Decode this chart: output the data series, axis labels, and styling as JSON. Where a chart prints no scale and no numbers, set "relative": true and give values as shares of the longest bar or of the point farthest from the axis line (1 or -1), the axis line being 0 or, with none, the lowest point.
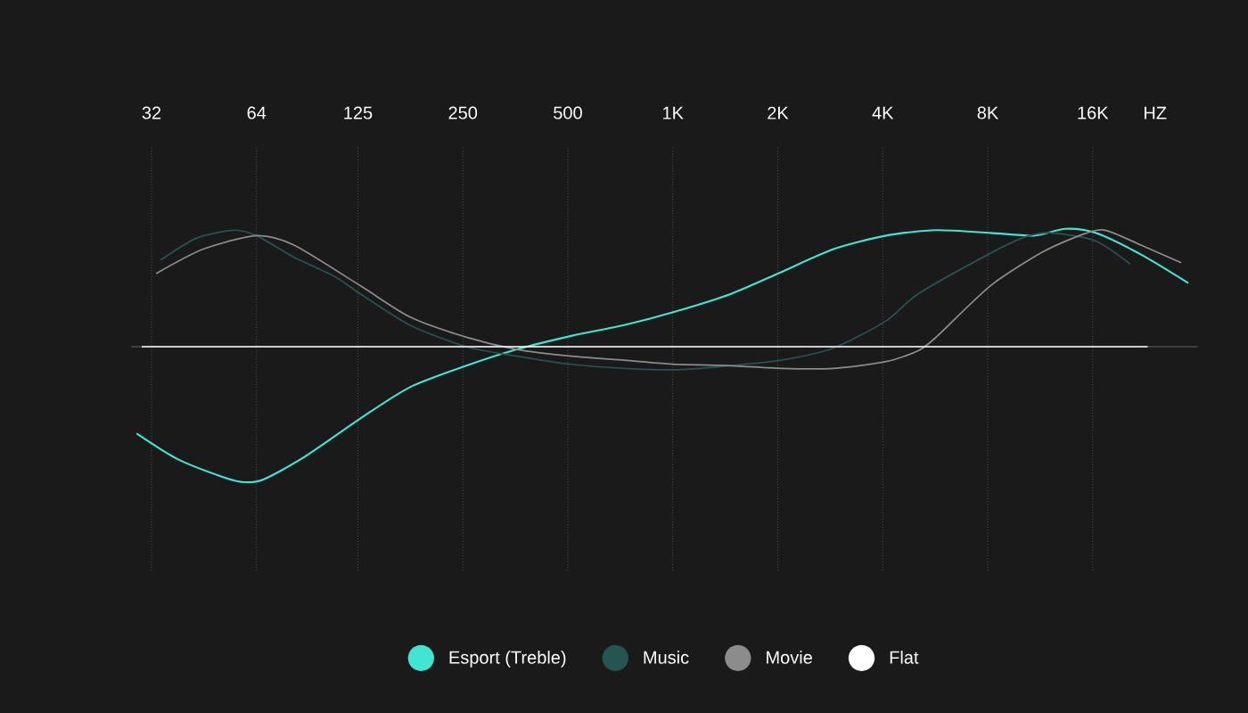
{
  "chart_data": {
    "type": "line",
    "relative": true,
    "log": "x",
    "grid": "x",
    "legend": "bottom",
    "xlabel": "HZ",
    "xlim": [
      28,
      32000
    ],
    "xticks": [
      32,
      64,
      125,
      250,
      500,
      {
        "value": 1000,
        "label": "1K"
      },
      {
        "value": 2000,
        "label": "2K"
      },
      {
        "value": 4000,
        "label": "4K"
      },
      {
        "value": 8000,
        "label": "8K"
      },
      {
        "value": 16000,
        "label": "16K"
      }
    ],
    "series": [
      {
        "name": "Esport (Treble)",
        "color": "#40e6d2",
        "x": [
          29,
          38,
          51,
          59,
          67,
          87,
          127,
          176,
          256,
          357,
          512,
          725,
          1019,
          1469,
          2043,
          2890,
          4088,
          5686,
          8148,
          10870,
          13357,
          16313,
          22016,
          30080
        ],
        "values": [
          -0.64,
          -0.83,
          -0.96,
          -1,
          -0.98,
          -0.82,
          -0.53,
          -0.3,
          -0.14,
          -0.02,
          0.08,
          0.16,
          0.26,
          0.39,
          0.55,
          0.72,
          0.82,
          0.86,
          0.84,
          0.82,
          0.87,
          0.84,
          0.68,
          0.47
        ]
      },
      {
        "name": "Music",
        "color": "#245550",
        "x": [
          34,
          43,
          55,
          64,
          82,
          107,
          127,
          176,
          256,
          357,
          512,
          725,
          1019,
          1469,
          2043,
          2890,
          4088,
          5056,
          8148,
          10240,
          12220,
          16313,
          20500
        ],
        "values": [
          0.64,
          0.8,
          0.86,
          0.82,
          0.66,
          0.52,
          0.39,
          0.16,
          0,
          -0.07,
          -0.13,
          -0.16,
          -0.17,
          -0.14,
          -0.1,
          -0.01,
          0.19,
          0.39,
          0.69,
          0.81,
          0.84,
          0.78,
          0.61
        ]
      },
      {
        "name": "Movie",
        "color": "#8c8c8c",
        "x": [
          33,
          45,
          64,
          82,
          127,
          176,
          256,
          357,
          512,
          725,
          1019,
          1469,
          2043,
          2890,
          4088,
          5056,
          5686,
          8148,
          11520,
          15020,
          17400,
          22016,
          28700
        ],
        "values": [
          0.54,
          0.72,
          0.82,
          0.75,
          0.45,
          0.22,
          0.07,
          -0.02,
          -0.07,
          -0.1,
          -0.13,
          -0.14,
          -0.16,
          -0.16,
          -0.11,
          -0.03,
          0.07,
          0.45,
          0.7,
          0.83,
          0.86,
          0.75,
          0.62
        ]
      },
      {
        "name": "Flat",
        "color": "#ffffff",
        "x": [
          30,
          23000
        ],
        "values": [
          0,
          0
        ]
      }
    ]
  }
}
